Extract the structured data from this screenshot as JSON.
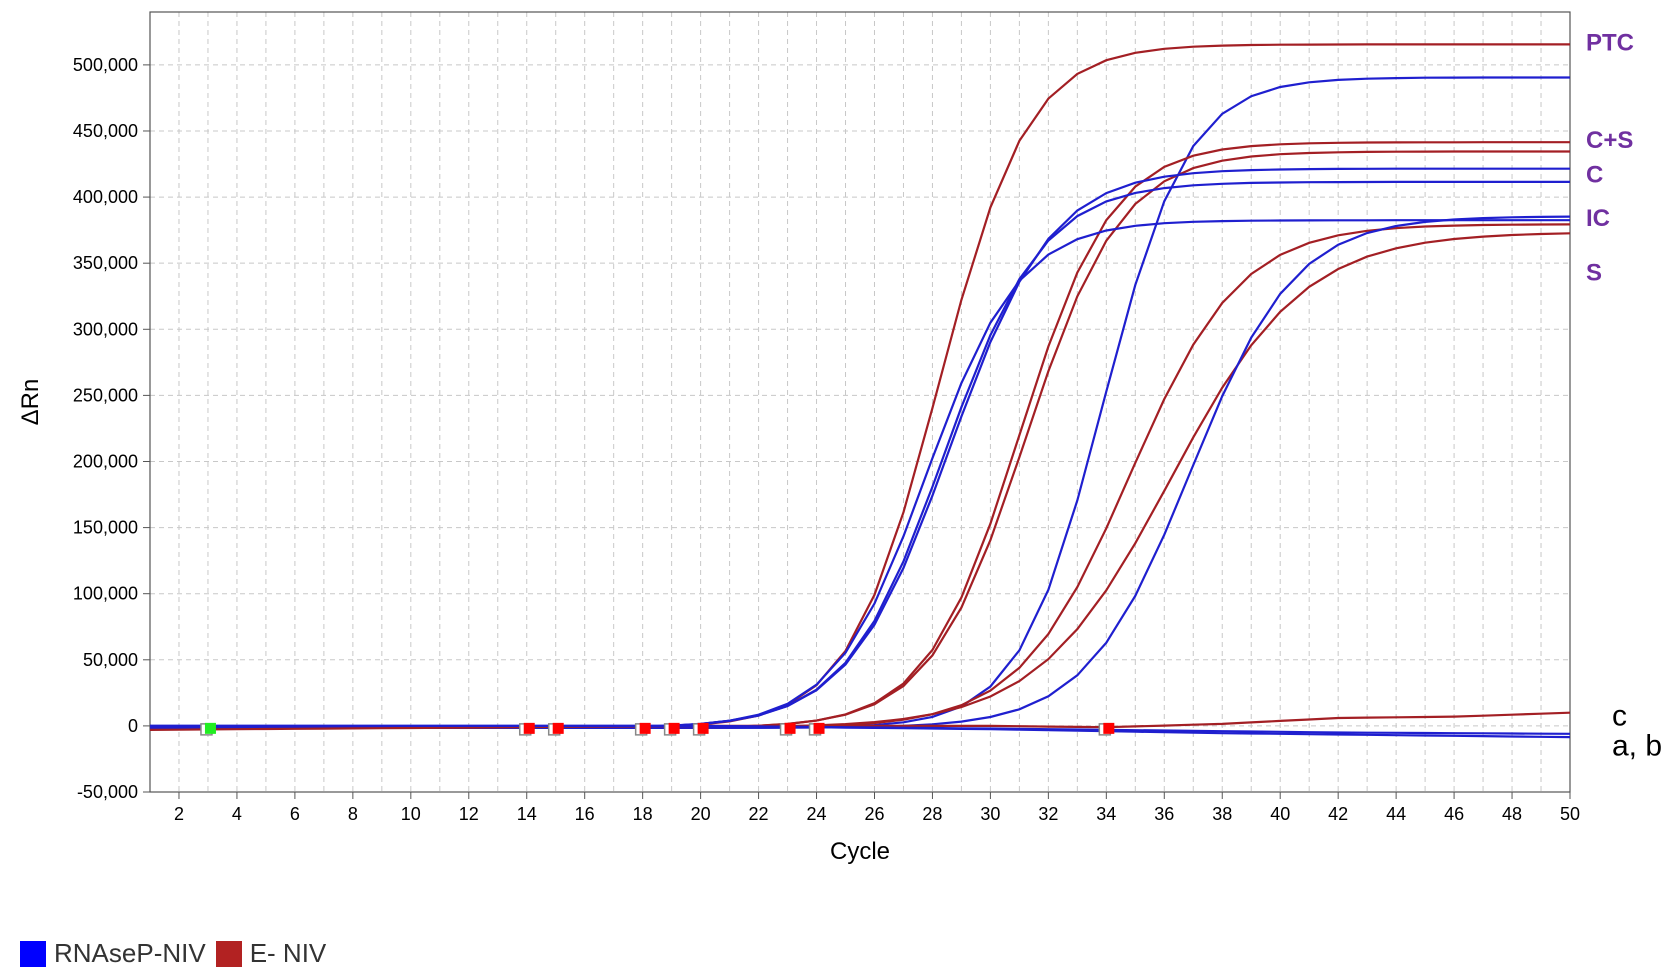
{
  "chart_data": {
    "type": "line",
    "xlabel": "Cycle",
    "ylabel": "ΔRn",
    "xlim": [
      1,
      50
    ],
    "ylim": [
      -50000,
      540000
    ],
    "xticks": [
      2,
      4,
      6,
      8,
      10,
      12,
      14,
      16,
      18,
      20,
      22,
      24,
      26,
      28,
      30,
      32,
      34,
      36,
      38,
      40,
      42,
      44,
      46,
      48,
      50
    ],
    "xtick_labels": [
      "2",
      "4",
      "6",
      "8",
      "10",
      "12",
      "14",
      "16",
      "18",
      "20",
      "22",
      "24",
      "26",
      "28",
      "30",
      "32",
      "34",
      "36",
      "38",
      "40",
      "42",
      "44",
      "46",
      "48",
      "50"
    ],
    "yticks": [
      -50000,
      0,
      50000,
      100000,
      150000,
      200000,
      250000,
      300000,
      350000,
      400000,
      450000,
      500000
    ],
    "ytick_labels": [
      "-50,000",
      "0",
      "50,000",
      "100,000",
      "150,000",
      "200,000",
      "250,000",
      "300,000",
      "350,000",
      "400,000",
      "450,000",
      "500,000"
    ],
    "grid": true,
    "colors": {
      "blue": "#1f1fcf",
      "red": "#a31f24",
      "annotation": "#7030a0",
      "marker_red": "#ff0000",
      "marker_green": "#22ee22"
    },
    "legend": {
      "placement": "bottom-left",
      "items": [
        {
          "label": "RNAseP-NIV",
          "color": "#0000ff"
        },
        {
          "label": "E- NIV",
          "color": "#b22222"
        }
      ]
    },
    "series": [
      {
        "color": "red",
        "model": "sigmoid",
        "plateau": 517000,
        "mid": 28.2,
        "slope": 1.55
      },
      {
        "color": "blue",
        "model": "sigmoid",
        "plateau": 492000,
        "mid": 33.9,
        "slope": 1.45
      },
      {
        "color": "red",
        "model": "sigmoid",
        "plateau": 443000,
        "mid": 31.0,
        "slope": 1.6
      },
      {
        "color": "red",
        "model": "sigmoid",
        "plateau": 436000,
        "mid": 31.2,
        "slope": 1.65
      },
      {
        "color": "blue",
        "model": "sigmoid",
        "plateau": 423000,
        "mid": 28.6,
        "slope": 1.75
      },
      {
        "color": "blue",
        "model": "sigmoid",
        "plateau": 413000,
        "mid": 28.4,
        "slope": 1.7
      },
      {
        "color": "blue",
        "model": "sigmoid",
        "plateau": 384000,
        "mid": 27.8,
        "slope": 1.6
      },
      {
        "color": "red",
        "model": "sigmoid",
        "plateau": 381000,
        "mid": 34.8,
        "slope": 1.9
      },
      {
        "color": "red",
        "model": "sigmoid",
        "plateau": 375000,
        "mid": 36.2,
        "slope": 2.3
      },
      {
        "color": "blue",
        "model": "sigmoid",
        "plateau": 387000,
        "mid": 36.9,
        "slope": 1.8
      },
      {
        "color": "red",
        "model": "baseline",
        "points": [
          [
            1,
            -3000
          ],
          [
            20,
            0
          ],
          [
            30,
            0
          ],
          [
            34,
            -1000
          ],
          [
            38,
            1500
          ],
          [
            42,
            6000
          ],
          [
            46,
            7000
          ],
          [
            50,
            10000
          ]
        ]
      },
      {
        "color": "blue",
        "model": "baseline",
        "points": [
          [
            1,
            0
          ],
          [
            20,
            0
          ],
          [
            30,
            -2000
          ],
          [
            34,
            -3000
          ],
          [
            38,
            -4000
          ],
          [
            42,
            -5000
          ],
          [
            46,
            -5500
          ],
          [
            50,
            -6000
          ]
        ]
      },
      {
        "color": "blue",
        "model": "baseline",
        "points": [
          [
            1,
            0
          ],
          [
            20,
            0
          ],
          [
            30,
            -2500
          ],
          [
            34,
            -4000
          ],
          [
            38,
            -5500
          ],
          [
            42,
            -6500
          ],
          [
            46,
            -7500
          ],
          [
            50,
            -8500
          ]
        ]
      }
    ],
    "markers": [
      {
        "x": 3,
        "color": "green"
      },
      {
        "x": 14,
        "color": "red"
      },
      {
        "x": 15,
        "color": "red"
      },
      {
        "x": 18,
        "color": "red"
      },
      {
        "x": 19,
        "color": "red"
      },
      {
        "x": 20,
        "color": "red"
      },
      {
        "x": 23,
        "color": "red"
      },
      {
        "x": 24,
        "color": "red"
      },
      {
        "x": 34,
        "color": "red"
      }
    ],
    "annotations": [
      {
        "text": "PTC",
        "y": 517000
      },
      {
        "text": "C+S",
        "y": 443000
      },
      {
        "text": "C",
        "y": 417000
      },
      {
        "text": "IC",
        "y": 384000
      },
      {
        "text": "S",
        "y": 343000
      }
    ],
    "side_labels": [
      {
        "text": "c",
        "y": 8000
      },
      {
        "text": "a, b",
        "y": -15000
      }
    ]
  }
}
